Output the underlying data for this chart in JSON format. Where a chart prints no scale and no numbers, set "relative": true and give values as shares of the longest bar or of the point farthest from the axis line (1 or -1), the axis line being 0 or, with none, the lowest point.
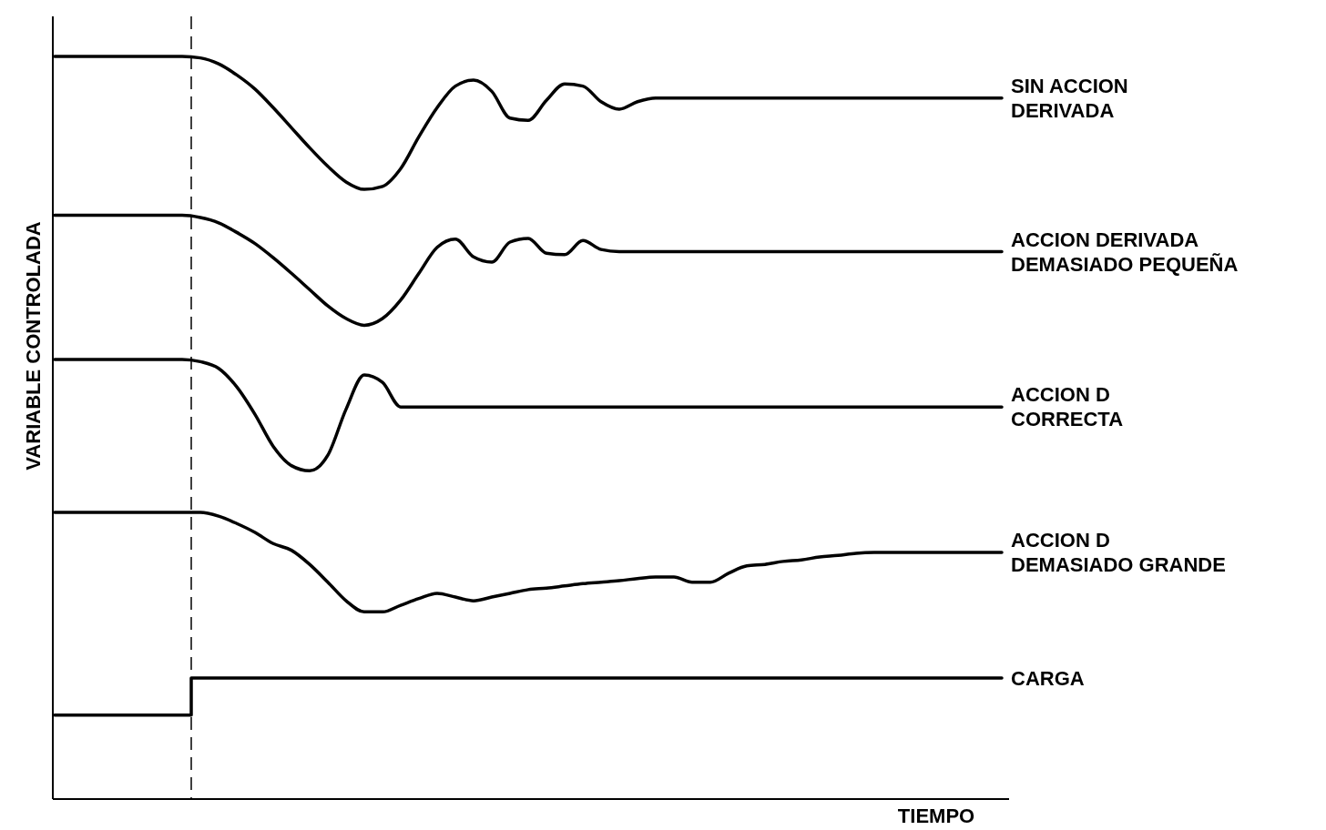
{
  "chart_data": {
    "type": "line",
    "relative": true,
    "xlabel": "TIEMPO",
    "ylabel": "VARIABLE CONTROLADA",
    "categories": [
      null,
      null,
      null,
      null,
      null,
      null,
      null,
      null,
      null,
      null,
      null,
      null,
      null,
      null,
      null,
      null,
      null,
      null,
      null,
      null,
      null,
      null,
      null,
      null,
      null,
      null,
      null,
      null,
      null,
      null,
      null,
      null,
      null,
      null,
      null,
      null,
      null,
      null,
      null,
      null,
      null,
      null,
      null,
      null,
      null,
      null,
      null,
      null,
      null,
      null,
      null,
      null,
      null
    ],
    "series": [
      {
        "name": "SIN ACCION DERIVADA",
        "color": "#000000",
        "values": [
          1,
          1,
          1,
          1,
          1,
          1,
          1,
          1,
          0.998,
          0.99,
          0.975,
          0.956,
          0.931,
          0.904,
          0.877,
          0.852,
          0.831,
          0.821,
          0.825,
          0.849,
          0.892,
          0.931,
          0.96,
          0.968,
          0.953,
          0.917,
          0.914,
          0.941,
          0.963,
          0.96,
          0.939,
          0.929,
          0.939,
          0.944,
          0.944,
          0.944,
          0.944,
          0.944,
          0.944,
          0.944,
          0.944,
          0.944,
          0.944,
          0.944,
          0.944,
          0.944,
          0.944,
          0.944,
          0.944,
          0.944,
          0.944,
          0.944,
          0.944
        ]
      },
      {
        "name": "ACCION DERIVADA DEMASIADO PEQUEÑA",
        "color": "#000000",
        "values": [
          0.786,
          0.786,
          0.786,
          0.786,
          0.786,
          0.786,
          0.786,
          0.786,
          0.783,
          0.776,
          0.763,
          0.748,
          0.729,
          0.708,
          0.686,
          0.664,
          0.647,
          0.638,
          0.647,
          0.672,
          0.708,
          0.743,
          0.754,
          0.73,
          0.723,
          0.75,
          0.755,
          0.735,
          0.733,
          0.752,
          0.74,
          0.737,
          0.737,
          0.737,
          0.737,
          0.737,
          0.737,
          0.737,
          0.737,
          0.737,
          0.737,
          0.737,
          0.737,
          0.737,
          0.737,
          0.737,
          0.737,
          0.737,
          0.737,
          0.737,
          0.737,
          0.737,
          0.737
        ]
      },
      {
        "name": "ACCION D CORRECTA",
        "color": "#000000",
        "values": [
          0.592,
          0.592,
          0.592,
          0.592,
          0.592,
          0.592,
          0.592,
          0.592,
          0.589,
          0.58,
          0.555,
          0.518,
          0.475,
          0.449,
          0.442,
          0.463,
          0.525,
          0.571,
          0.561,
          0.528,
          0.528,
          0.528,
          0.528,
          0.528,
          0.528,
          0.528,
          0.528,
          0.528,
          0.528,
          0.528,
          0.528,
          0.528,
          0.528,
          0.528,
          0.528,
          0.528,
          0.528,
          0.528,
          0.528,
          0.528,
          0.528,
          0.528,
          0.528,
          0.528,
          0.528,
          0.528,
          0.528,
          0.528,
          0.528,
          0.528,
          0.528,
          0.528,
          0.528
        ]
      },
      {
        "name": "ACCION D DEMASIADO GRANDE",
        "color": "#000000",
        "values": [
          0.386,
          0.386,
          0.386,
          0.386,
          0.386,
          0.386,
          0.386,
          0.386,
          0.386,
          0.381,
          0.371,
          0.359,
          0.344,
          0.335,
          0.316,
          0.292,
          0.267,
          0.252,
          0.252,
          0.261,
          0.27,
          0.277,
          0.272,
          0.267,
          0.272,
          0.277,
          0.282,
          0.284,
          0.287,
          0.29,
          0.292,
          0.294,
          0.297,
          0.299,
          0.299,
          0.292,
          0.292,
          0.304,
          0.314,
          0.316,
          0.32,
          0.322,
          0.326,
          0.328,
          0.331,
          0.332,
          0.332,
          0.332,
          0.332,
          0.332,
          0.332,
          0.332,
          0.332
        ]
      },
      {
        "name": "CARGA",
        "type": "step",
        "color": "#000000",
        "values": [
          0.113,
          0.113,
          0.113,
          0.113,
          0.113,
          0.113,
          0.113,
          0.113,
          0.163,
          0.163,
          0.163,
          0.163,
          0.163,
          0.163,
          0.163,
          0.163,
          0.163,
          0.163,
          0.163,
          0.163,
          0.163,
          0.163,
          0.163,
          0.163,
          0.163,
          0.163,
          0.163,
          0.163,
          0.163,
          0.163,
          0.163,
          0.163,
          0.163,
          0.163,
          0.163,
          0.163,
          0.163,
          0.163,
          0.163,
          0.163,
          0.163,
          0.163,
          0.163,
          0.163,
          0.163,
          0.163,
          0.163,
          0.163,
          0.163,
          0.163,
          0.163,
          0.163,
          0.163
        ]
      }
    ]
  }
}
